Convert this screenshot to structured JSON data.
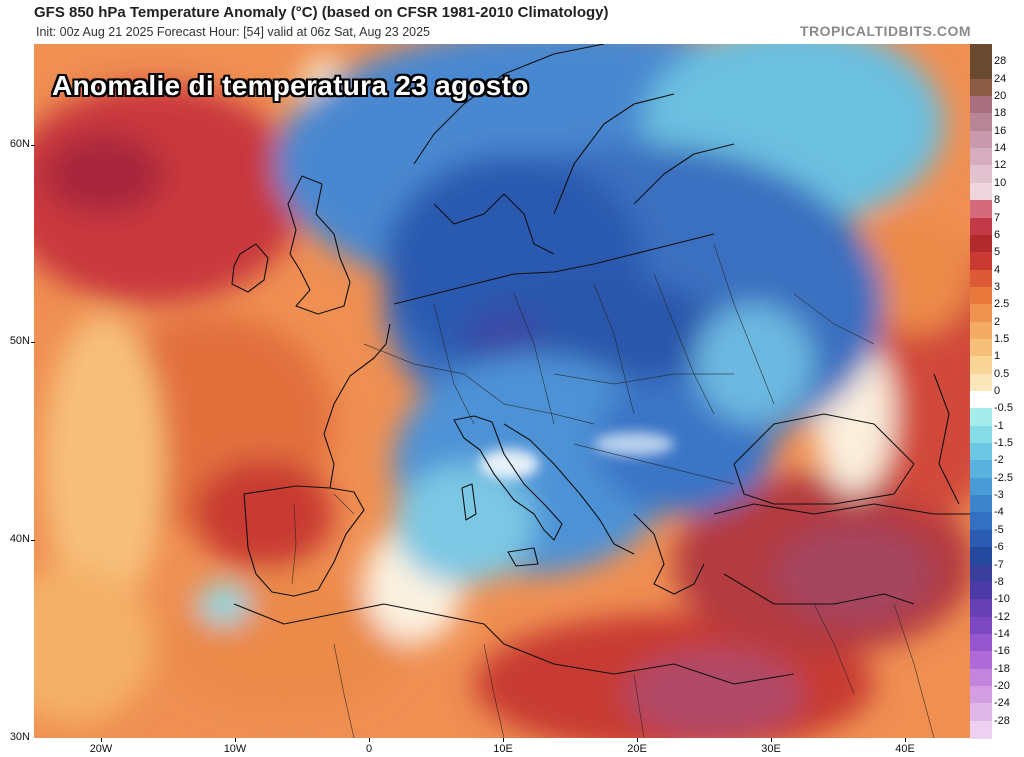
{
  "header": {
    "title": "GFS 850 hPa Temperature Anomaly (°C) (based on CFSR 1981-2010 Climatology)",
    "subtitle": "Init: 00z Aug 21 2025   Forecast Hour: [54]   valid at 06z Sat, Aug 23 2025",
    "brand": "TROPICALTIDBITS.COM"
  },
  "overlay": {
    "title": "Anomalie di temperatura 23 agosto"
  },
  "axes": {
    "lat_labels": [
      "60N",
      "50N",
      "40N",
      "30N"
    ],
    "lon_labels": [
      "20W",
      "10W",
      "0",
      "10E",
      "20E",
      "30E",
      "40E"
    ]
  },
  "colorbar": {
    "labels": [
      "28",
      "24",
      "20",
      "18",
      "16",
      "14",
      "12",
      "10",
      "8",
      "7",
      "6",
      "5",
      "4",
      "3",
      "2.5",
      "2",
      "1.5",
      "1",
      "0.5",
      "0",
      "-0.5",
      "-1",
      "-1.5",
      "-2",
      "-2.5",
      "-3",
      "-4",
      "-5",
      "-6",
      "-7",
      "-8",
      "-10",
      "-12",
      "-14",
      "-16",
      "-18",
      "-20",
      "-24",
      "-28"
    ],
    "colors": [
      "#6b4a32",
      "#8a5c45",
      "#a8707e",
      "#b88596",
      "#c89aab",
      "#d6aebe",
      "#e3c2cf",
      "#eed6de",
      "#d46a7c",
      "#c23a47",
      "#b02a2e",
      "#c83a32",
      "#dc5a36",
      "#e8783c",
      "#ef9350",
      "#f4ab64",
      "#f7c07a",
      "#f9d596",
      "#fbe6bb",
      "#ffffff",
      "#a6ecec",
      "#86dce6",
      "#6cc8e2",
      "#58b2dd",
      "#4a9cd6",
      "#3d84cc",
      "#3370c2",
      "#2a5cb4",
      "#25489f",
      "#3a3f9e",
      "#4c3aa8",
      "#6440b4",
      "#7c48c2",
      "#9656ce",
      "#ae6ad6",
      "#c384dc",
      "#d49ee2",
      "#e0b8e8",
      "#ecd2f0"
    ]
  }
}
